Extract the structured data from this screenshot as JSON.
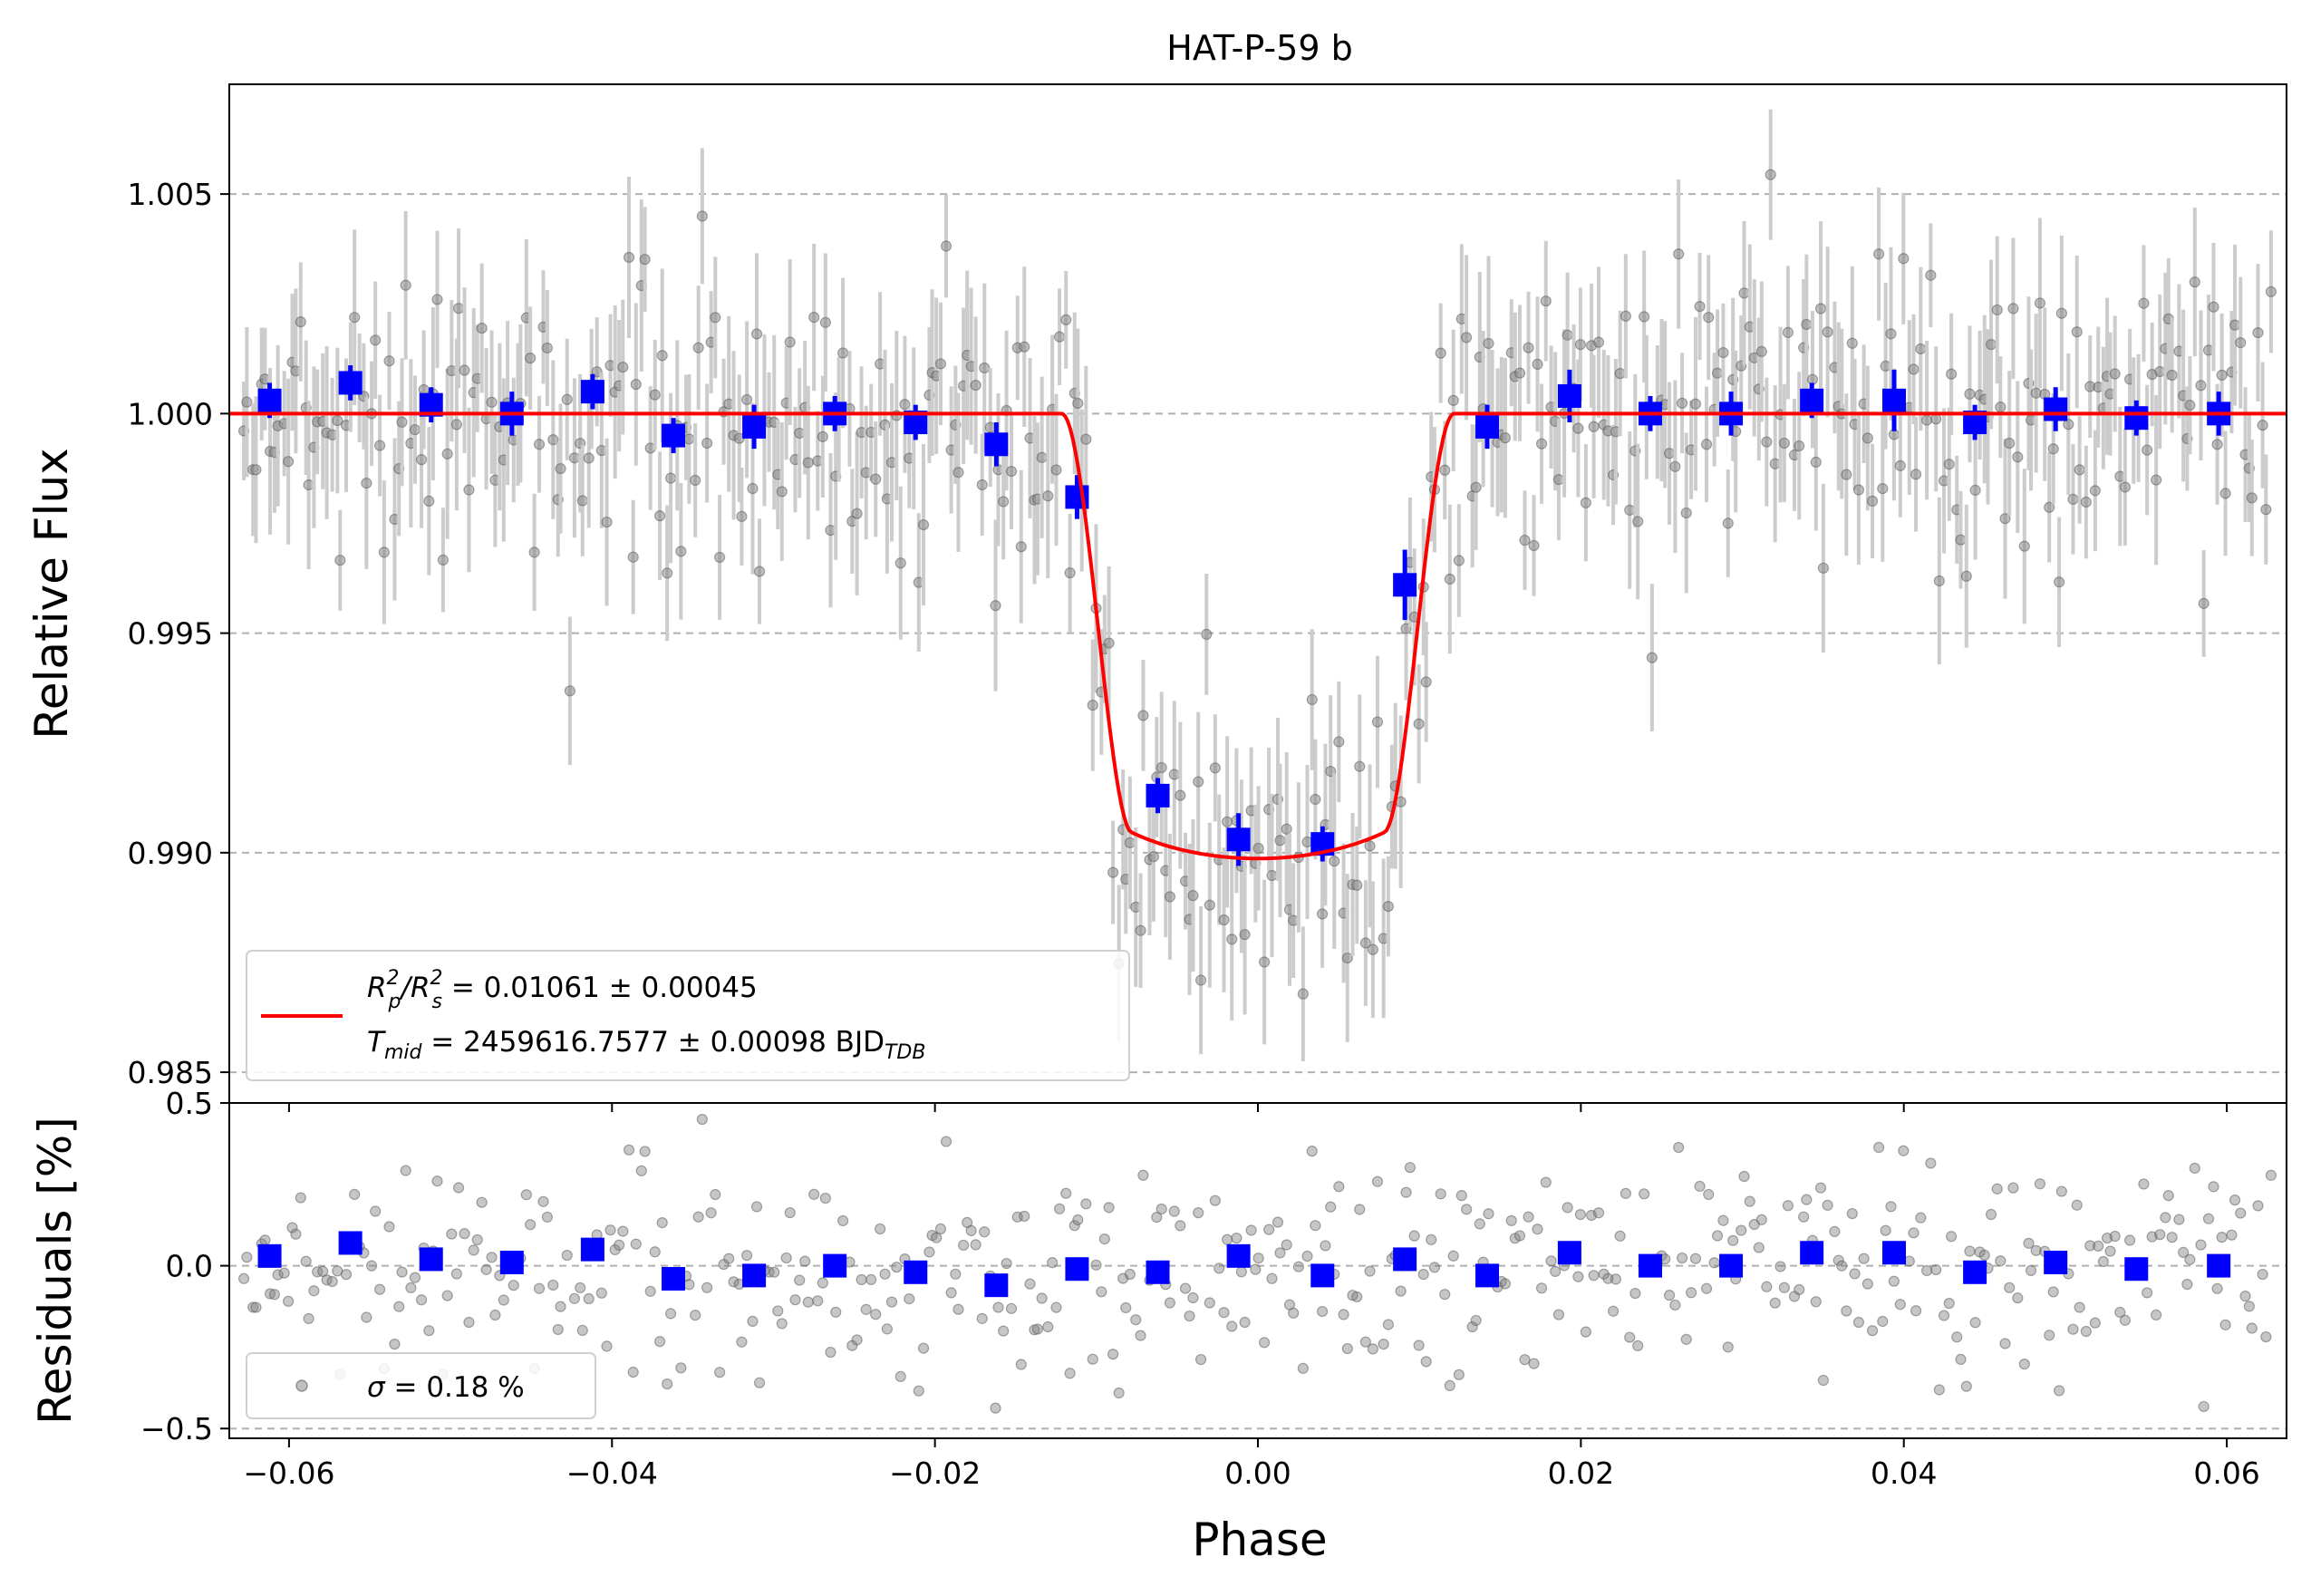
{
  "chart_data": [
    {
      "type": "scatter",
      "panel": "light-curve",
      "title": "HAT-P-59 b",
      "ylabel": "Relative Flux",
      "xlim": [
        -0.0637,
        0.0637
      ],
      "ylim": [
        0.9843,
        1.0075
      ],
      "yticks": [
        0.985,
        0.99,
        0.995,
        1.0,
        1.005
      ],
      "ytick_labels": [
        "0.985",
        "0.990",
        "0.995",
        "1.000",
        "1.005"
      ],
      "grid": "horizontal dashed",
      "colors": {
        "raw": "#808080",
        "errorbar": "#cccccc",
        "binned": "#0000ff",
        "model": "#ff0000"
      },
      "legend": {
        "placement": "lower-left",
        "entries": [
          {
            "series": "model",
            "line1": {
              "prefix": "R",
              "sub1": "p",
              "sup1": "2",
              "mid": "/R",
              "sub2": "s",
              "sup2": "2",
              "rest": " = 0.01061 ± 0.00045"
            },
            "line2": {
              "prefix": "T",
              "sub1": "mid",
              "rest": " = 2459616.7577 ± 0.00098 BJD",
              "sub2": "TDB"
            }
          }
        ]
      },
      "model": {
        "baseline": 1.0,
        "depth_fraction": 0.01061,
        "t14": 0.0243,
        "t23": 0.0157,
        "limb_darkening": 0.25
      },
      "raw_sigma": 0.0018,
      "binned": {
        "x": [
          -0.0612,
          -0.0562,
          -0.0512,
          -0.0462,
          -0.0412,
          -0.0362,
          -0.0312,
          -0.0262,
          -0.0212,
          -0.0162,
          -0.0112,
          -0.0062,
          -0.0012,
          0.004,
          0.0091,
          0.0142,
          0.0193,
          0.0243,
          0.0293,
          0.0343,
          0.0394,
          0.0444,
          0.0494,
          0.0544,
          0.0595
        ],
        "y": [
          1.0003,
          1.0007,
          1.0002,
          1.0,
          1.0005,
          0.9995,
          0.9997,
          1.0,
          0.9998,
          0.9993,
          0.9981,
          0.9913,
          0.9903,
          0.9902,
          0.9961,
          0.9997,
          1.0004,
          1.0,
          1.0,
          1.0003,
          1.0003,
          0.9998,
          1.0001,
          0.9999,
          1.0
        ],
        "yerr": [
          0.0004,
          0.0004,
          0.0004,
          0.0005,
          0.0004,
          0.0004,
          0.0005,
          0.0004,
          0.0004,
          0.0005,
          0.0005,
          0.0004,
          0.0006,
          0.0004,
          0.0008,
          0.0005,
          0.0006,
          0.0004,
          0.0005,
          0.0004,
          0.0007,
          0.0004,
          0.0005,
          0.0004,
          0.0005
        ]
      }
    },
    {
      "type": "scatter",
      "panel": "residuals",
      "xlabel": "Phase",
      "ylabel": "Residuals [%]",
      "xlim": [
        -0.0637,
        0.0637
      ],
      "ylim": [
        -0.53,
        0.5
      ],
      "xticks": [
        -0.06,
        -0.04,
        -0.02,
        0.0,
        0.02,
        0.04,
        0.06
      ],
      "xtick_labels": [
        "−0.06",
        "−0.04",
        "−0.02",
        "0.00",
        "0.02",
        "0.04",
        "0.06"
      ],
      "yticks": [
        -0.5,
        0.0,
        0.5
      ],
      "ytick_labels": [
        "−0.5",
        "0.0",
        "0.5"
      ],
      "grid": "horizontal dashed",
      "legend": {
        "placement": "lower-left",
        "entries": [
          {
            "marker": "circle",
            "label_symbol": "σ",
            "label_rest": " = 0.18 %"
          }
        ]
      },
      "raw_sigma_percent": 0.18,
      "binned": {
        "x": [
          -0.0612,
          -0.0562,
          -0.0512,
          -0.0462,
          -0.0412,
          -0.0362,
          -0.0312,
          -0.0262,
          -0.0212,
          -0.0162,
          -0.0112,
          -0.0062,
          -0.0012,
          0.004,
          0.0091,
          0.0142,
          0.0193,
          0.0243,
          0.0293,
          0.0343,
          0.0394,
          0.0444,
          0.0494,
          0.0544,
          0.0595
        ],
        "y": [
          0.03,
          0.07,
          0.02,
          0.01,
          0.05,
          -0.04,
          -0.03,
          0.0,
          -0.02,
          -0.06,
          -0.01,
          -0.02,
          0.03,
          -0.03,
          0.02,
          -0.03,
          0.04,
          0.0,
          0.0,
          0.04,
          0.04,
          -0.02,
          0.01,
          -0.01,
          0.0
        ]
      }
    }
  ]
}
